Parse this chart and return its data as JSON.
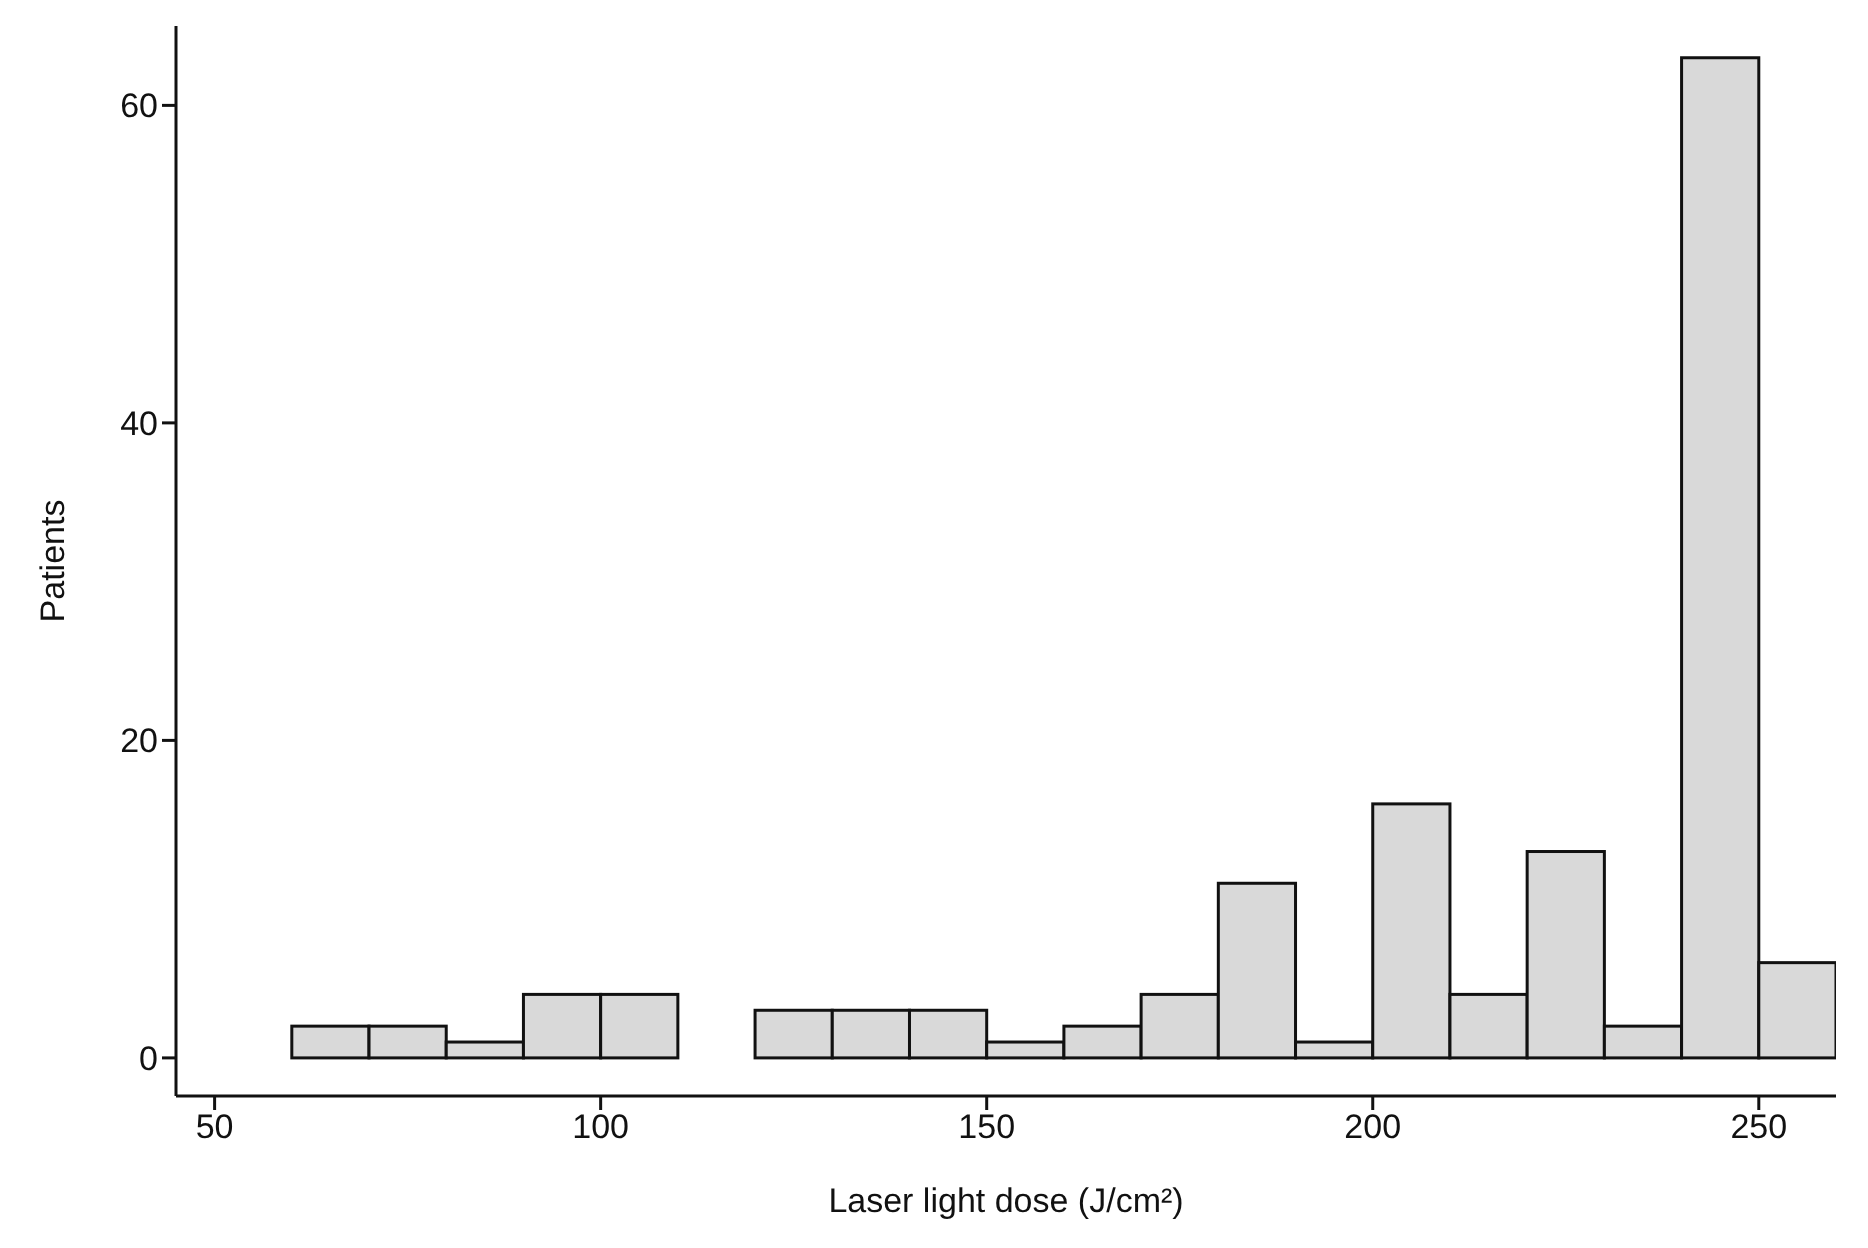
{
  "chart_data": {
    "type": "histogram",
    "xlabel": "Laser light dose (J/cm²)",
    "ylabel": "Patients",
    "bins": [
      60,
      70,
      80,
      90,
      100,
      110,
      120,
      130,
      140,
      150,
      160,
      170,
      180,
      190,
      200,
      210,
      220,
      230,
      240,
      250,
      260
    ],
    "values": [
      2,
      2,
      1,
      4,
      4,
      0,
      3,
      3,
      3,
      1,
      2,
      4,
      11,
      1,
      16,
      4,
      13,
      2,
      63,
      6
    ],
    "color": "#d9d9d9",
    "xlim": [
      45,
      260
    ],
    "xticks": [
      50,
      100,
      150,
      200,
      250
    ],
    "ylim": [
      -2.4,
      65
    ],
    "yticks": [
      0,
      20,
      40,
      60
    ],
    "grid": false,
    "legend": false
  }
}
